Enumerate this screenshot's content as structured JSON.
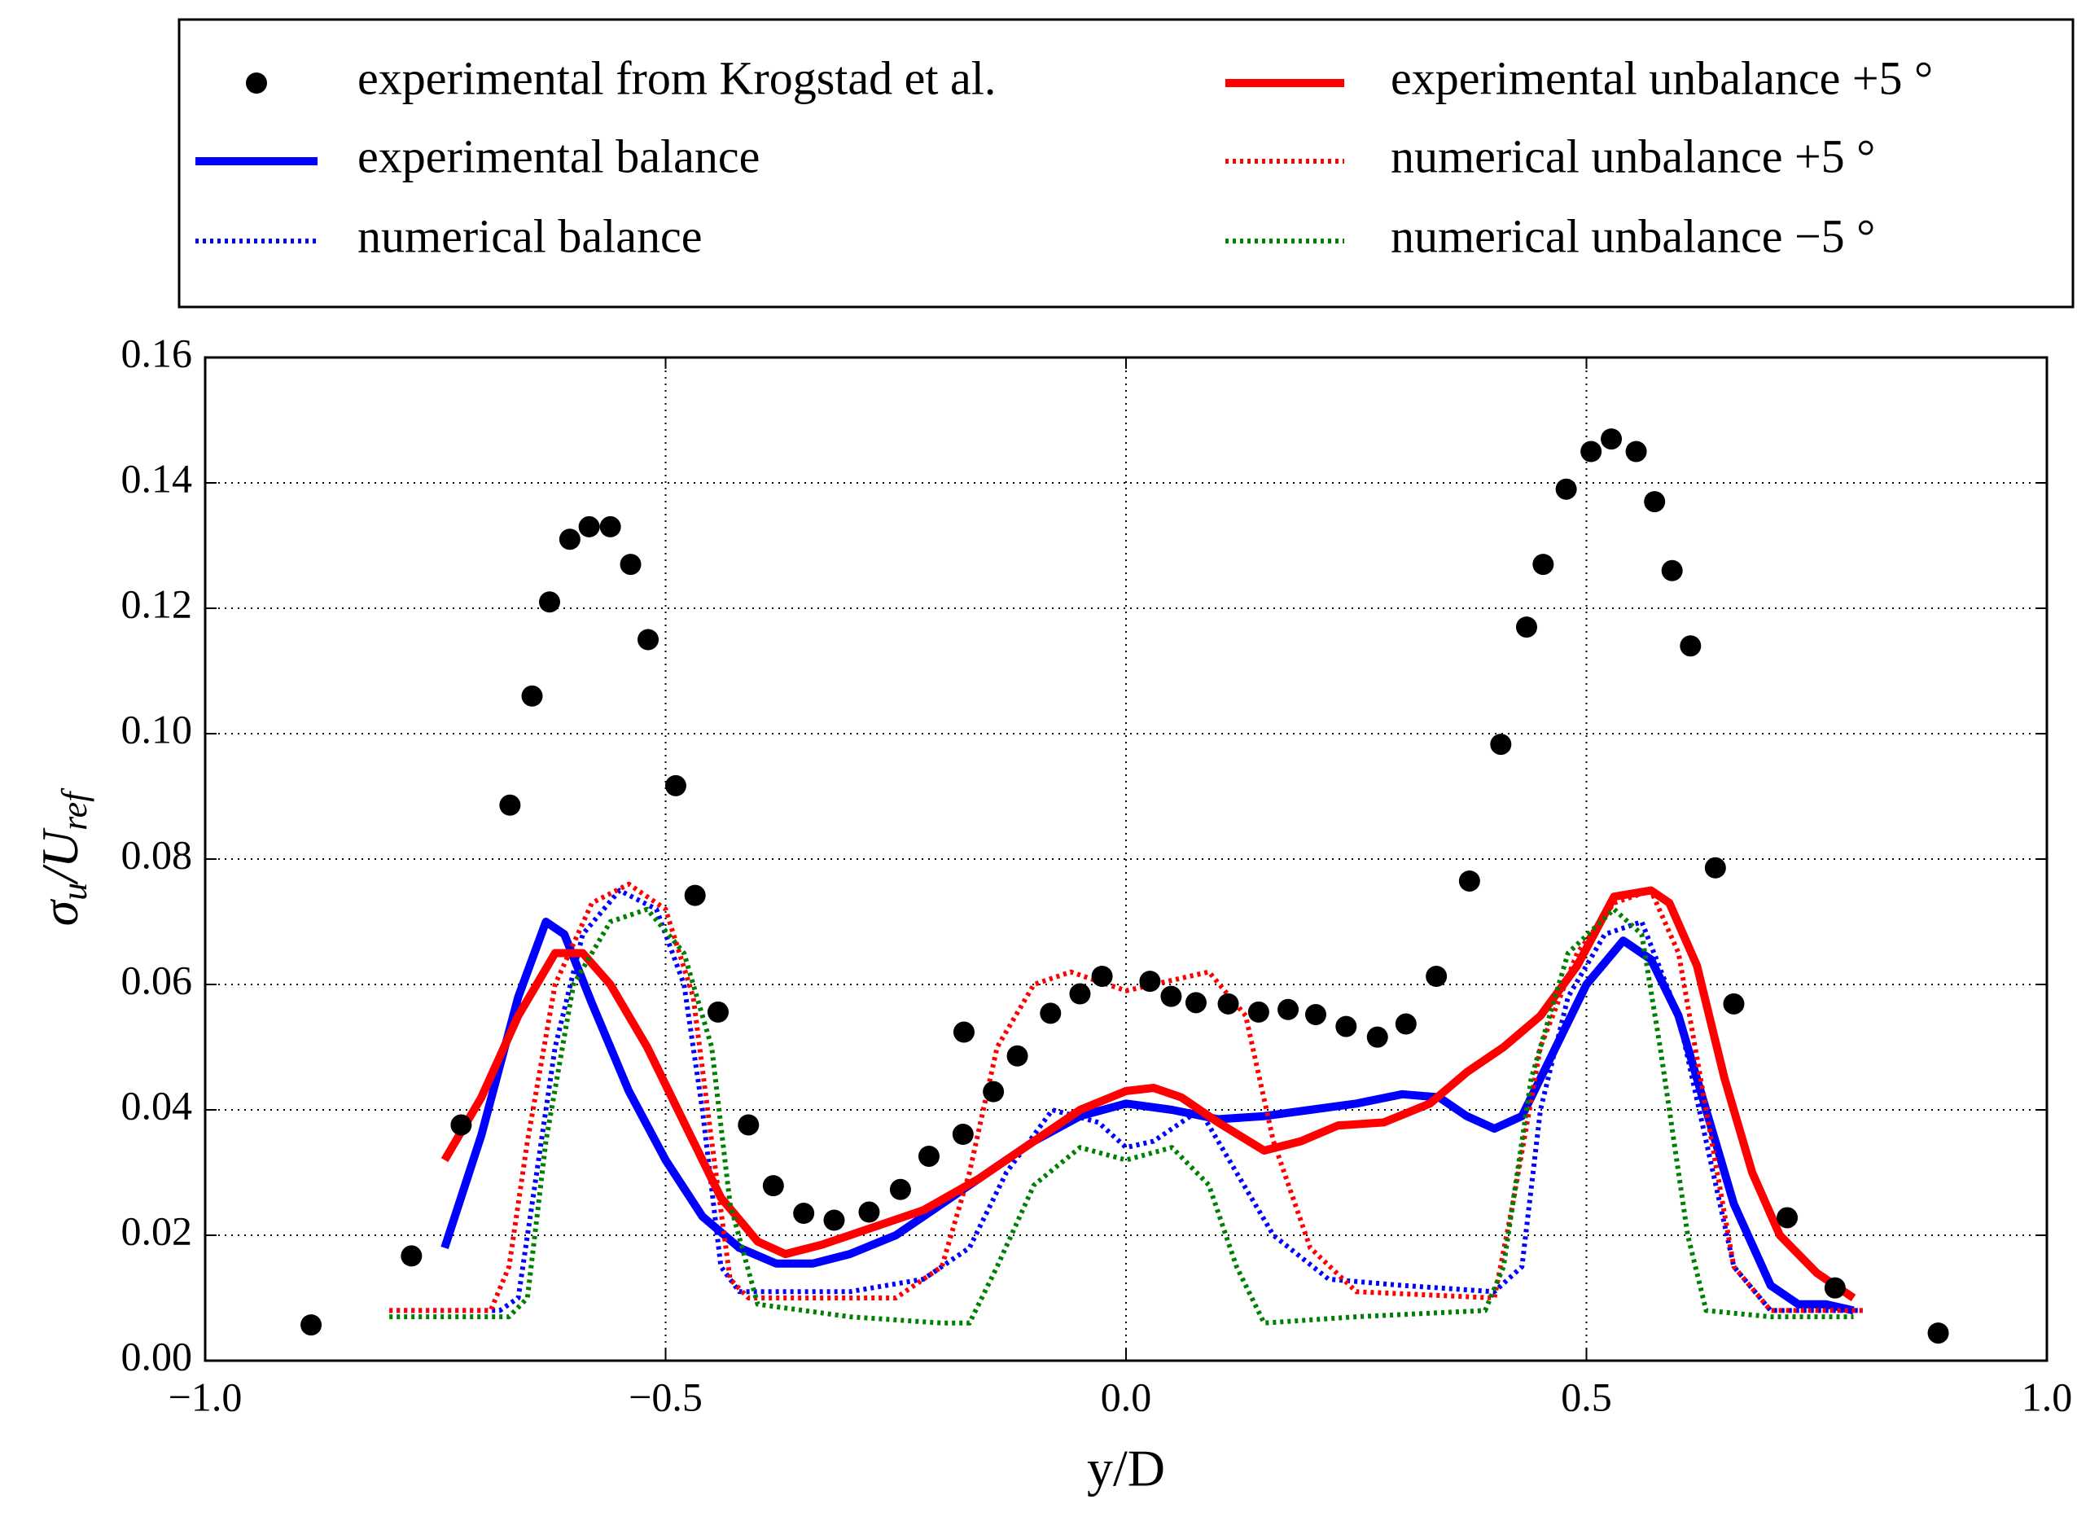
{
  "chart_data": {
    "type": "line",
    "xlabel": "y/D",
    "ylabel": [
      "σ",
      "u",
      "/U",
      "ref"
    ],
    "xlim": [
      -1,
      1
    ],
    "ylim": [
      0,
      0.16
    ],
    "xticks": [
      {
        "value": -1,
        "label": "−1.0"
      },
      {
        "value": -0.5,
        "label": "−0.5"
      },
      {
        "value": 0,
        "label": "0.0"
      },
      0.5,
      {
        "value": 1,
        "label": "1.0"
      }
    ],
    "yticks": [
      {
        "value": 0,
        "label": "0.00"
      },
      0.02,
      0.04,
      0.06,
      0.08,
      {
        "value": 0.1,
        "label": "0.10"
      },
      0.12,
      0.14,
      0.16
    ],
    "grid": true,
    "legend": "top",
    "series": [
      {
        "name": "experimental from Krogstad et al.",
        "type": "scatter",
        "color": "#000000",
        "x": [
          -0.885,
          -0.776,
          -0.722,
          -0.669,
          -0.645,
          -0.626,
          -0.604,
          -0.583,
          -0.56,
          -0.538,
          -0.519,
          -0.489,
          -0.468,
          -0.443,
          -0.41,
          -0.383,
          -0.35,
          -0.317,
          -0.279,
          -0.245,
          -0.214,
          -0.177,
          -0.176,
          -0.144,
          -0.118,
          -0.082,
          -0.05,
          -0.026,
          0.026,
          0.049,
          0.076,
          0.111,
          0.144,
          0.176,
          0.206,
          0.239,
          0.273,
          0.304,
          0.337,
          0.373,
          0.407,
          0.435,
          0.453,
          0.478,
          0.505,
          0.527,
          0.554,
          0.574,
          0.593,
          0.613,
          0.64,
          0.66,
          0.718,
          0.77,
          0.882
        ],
        "values": [
          0.0057,
          0.0167,
          0.0376,
          0.0886,
          0.106,
          0.121,
          0.131,
          0.133,
          0.133,
          0.127,
          0.115,
          0.0917,
          0.0742,
          0.0556,
          0.0376,
          0.0279,
          0.0235,
          0.0224,
          0.0237,
          0.0273,
          0.0326,
          0.0361,
          0.0524,
          0.0429,
          0.0486,
          0.0554,
          0.0585,
          0.0613,
          0.0605,
          0.0581,
          0.0571,
          0.0569,
          0.0556,
          0.056,
          0.0552,
          0.0533,
          0.0516,
          0.0537,
          0.0613,
          0.0765,
          0.0983,
          0.117,
          0.127,
          0.139,
          0.145,
          0.147,
          0.145,
          0.137,
          0.126,
          0.114,
          0.0786,
          0.0569,
          0.0228,
          0.0116,
          0.0044
        ]
      },
      {
        "name": "experimental balance",
        "type": "line",
        "style": "solid",
        "color": "#0000ff",
        "x": [
          -0.74,
          -0.7,
          -0.66,
          -0.63,
          -0.61,
          -0.58,
          -0.54,
          -0.5,
          -0.46,
          -0.42,
          -0.38,
          -0.34,
          -0.3,
          -0.25,
          -0.2,
          -0.15,
          -0.1,
          -0.05,
          0,
          0.05,
          0.1,
          0.15,
          0.2,
          0.25,
          0.3,
          0.34,
          0.37,
          0.4,
          0.43,
          0.46,
          0.5,
          0.54,
          0.57,
          0.6,
          0.63,
          0.66,
          0.7,
          0.73,
          0.76,
          0.79
        ],
        "values": [
          0.018,
          0.036,
          0.058,
          0.07,
          0.068,
          0.057,
          0.043,
          0.032,
          0.023,
          0.018,
          0.0155,
          0.0155,
          0.017,
          0.02,
          0.025,
          0.03,
          0.035,
          0.039,
          0.041,
          0.04,
          0.0385,
          0.039,
          0.04,
          0.041,
          0.0425,
          0.042,
          0.039,
          0.037,
          0.039,
          0.048,
          0.06,
          0.067,
          0.064,
          0.055,
          0.04,
          0.025,
          0.012,
          0.009,
          0.009,
          0.008
        ]
      },
      {
        "name": "numerical balance",
        "type": "line",
        "style": "dotted",
        "color": "#0000ff",
        "x": [
          -0.8,
          -0.68,
          -0.66,
          -0.64,
          -0.62,
          -0.59,
          -0.55,
          -0.51,
          -0.48,
          -0.46,
          -0.44,
          -0.42,
          -0.3,
          -0.22,
          -0.17,
          -0.13,
          -0.08,
          -0.03,
          0,
          0.03,
          0.08,
          0.12,
          0.16,
          0.22,
          0.3,
          0.4,
          0.43,
          0.45,
          0.48,
          0.52,
          0.56,
          0.6,
          0.63,
          0.66,
          0.7,
          0.8
        ],
        "values": [
          0.008,
          0.008,
          0.01,
          0.03,
          0.05,
          0.068,
          0.075,
          0.072,
          0.06,
          0.04,
          0.015,
          0.011,
          0.011,
          0.013,
          0.018,
          0.03,
          0.04,
          0.038,
          0.034,
          0.035,
          0.04,
          0.03,
          0.02,
          0.013,
          0.012,
          0.011,
          0.015,
          0.04,
          0.058,
          0.068,
          0.07,
          0.055,
          0.035,
          0.015,
          0.008,
          0.008
        ]
      },
      {
        "name": "experimental unbalance +5 °",
        "type": "line",
        "style": "solid",
        "color": "#ff0000",
        "x": [
          -0.74,
          -0.7,
          -0.66,
          -0.62,
          -0.59,
          -0.56,
          -0.52,
          -0.48,
          -0.44,
          -0.4,
          -0.37,
          -0.33,
          -0.28,
          -0.22,
          -0.16,
          -0.1,
          -0.05,
          0,
          0.03,
          0.06,
          0.1,
          0.15,
          0.19,
          0.23,
          0.28,
          0.33,
          0.37,
          0.41,
          0.45,
          0.49,
          0.53,
          0.57,
          0.59,
          0.62,
          0.65,
          0.68,
          0.71,
          0.75,
          0.79
        ],
        "values": [
          0.032,
          0.042,
          0.055,
          0.065,
          0.065,
          0.06,
          0.05,
          0.038,
          0.026,
          0.019,
          0.017,
          0.0185,
          0.021,
          0.024,
          0.029,
          0.035,
          0.04,
          0.043,
          0.0435,
          0.042,
          0.038,
          0.0335,
          0.035,
          0.0375,
          0.038,
          0.041,
          0.046,
          0.05,
          0.055,
          0.063,
          0.074,
          0.075,
          0.073,
          0.063,
          0.045,
          0.03,
          0.02,
          0.014,
          0.01
        ]
      },
      {
        "name": "numerical unbalance +5 °",
        "type": "line",
        "style": "dotted",
        "color": "#ff0000",
        "x": [
          -0.8,
          -0.69,
          -0.67,
          -0.65,
          -0.62,
          -0.58,
          -0.54,
          -0.5,
          -0.47,
          -0.45,
          -0.43,
          -0.41,
          -0.25,
          -0.2,
          -0.17,
          -0.14,
          -0.1,
          -0.06,
          0,
          0.06,
          0.09,
          0.13,
          0.16,
          0.2,
          0.25,
          0.4,
          0.42,
          0.45,
          0.49,
          0.53,
          0.57,
          0.6,
          0.63,
          0.66,
          0.7,
          0.8
        ],
        "values": [
          0.008,
          0.008,
          0.015,
          0.035,
          0.06,
          0.073,
          0.076,
          0.072,
          0.058,
          0.035,
          0.013,
          0.01,
          0.01,
          0.015,
          0.03,
          0.05,
          0.06,
          0.062,
          0.059,
          0.061,
          0.062,
          0.055,
          0.035,
          0.018,
          0.011,
          0.01,
          0.025,
          0.05,
          0.065,
          0.073,
          0.075,
          0.065,
          0.04,
          0.015,
          0.008,
          0.008
        ]
      },
      {
        "name": "numerical unbalance −5 °",
        "type": "line",
        "style": "dotted",
        "color": "#008000",
        "x": [
          -0.8,
          -0.67,
          -0.65,
          -0.63,
          -0.6,
          -0.56,
          -0.52,
          -0.48,
          -0.45,
          -0.43,
          -0.4,
          -0.3,
          -0.2,
          -0.17,
          -0.14,
          -0.1,
          -0.05,
          0,
          0.05,
          0.09,
          0.12,
          0.15,
          0.25,
          0.39,
          0.41,
          0.44,
          0.48,
          0.53,
          0.56,
          0.58,
          0.61,
          0.63,
          0.7,
          0.79
        ],
        "values": [
          0.007,
          0.007,
          0.01,
          0.035,
          0.06,
          0.07,
          0.072,
          0.065,
          0.05,
          0.025,
          0.009,
          0.007,
          0.006,
          0.006,
          0.015,
          0.028,
          0.034,
          0.032,
          0.034,
          0.028,
          0.015,
          0.006,
          0.007,
          0.008,
          0.015,
          0.045,
          0.065,
          0.072,
          0.068,
          0.05,
          0.02,
          0.008,
          0.007,
          0.007
        ]
      }
    ]
  }
}
